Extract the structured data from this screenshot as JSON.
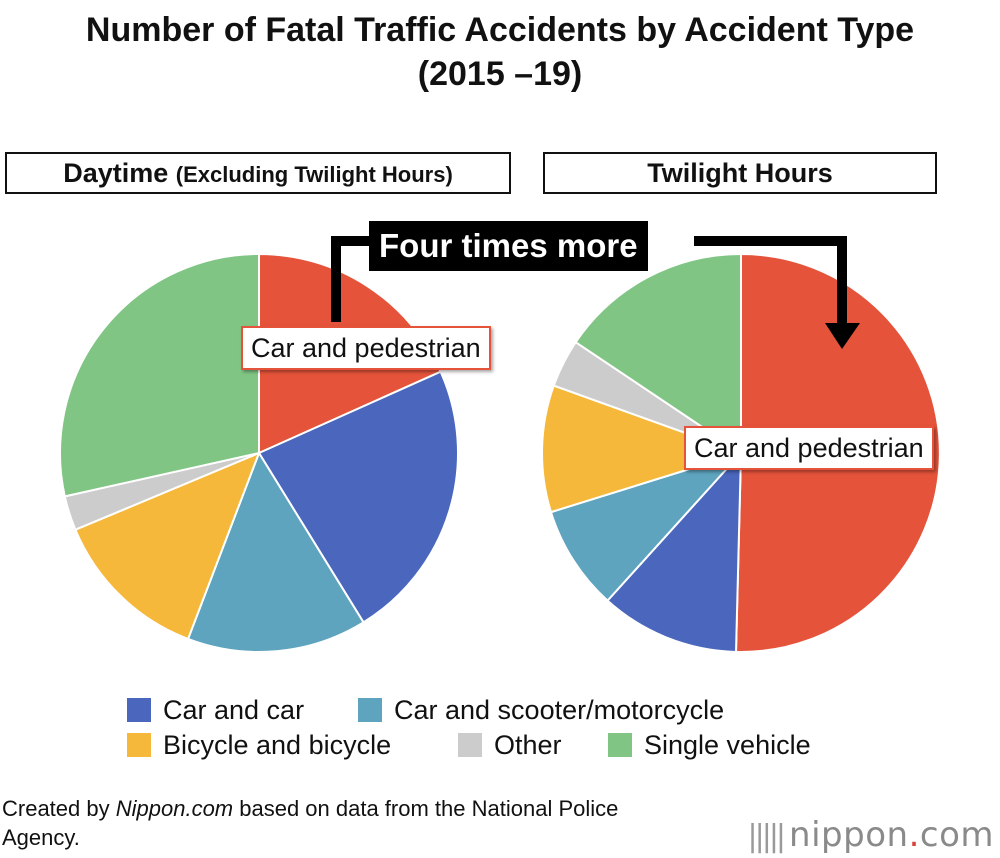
{
  "title_line1": "Number of Fatal Traffic Accidents by Accident Type",
  "title_line2": "(2015 –19)",
  "panels": {
    "daytime": {
      "main": "Daytime",
      "sub": "(Excluding Twilight Hours)"
    },
    "twilight": {
      "main": "Twilight Hours"
    }
  },
  "callout": "Four times more",
  "slice_label": "Car and pedestrian",
  "legend": [
    {
      "name": "Car and car",
      "color": "#4a67bd"
    },
    {
      "name": "Car and scooter/motorcycle",
      "color": "#5ea4be"
    },
    {
      "name": "Bicycle and bicycle",
      "color": "#f5b83a"
    },
    {
      "name": "Other",
      "color": "#cccccc"
    },
    {
      "name": "Single vehicle",
      "color": "#80c584"
    }
  ],
  "source_prefix": "Created by ",
  "source_italic": "Nippon.com",
  "source_suffix": " based on data from the National Police Agency.",
  "logo": {
    "main": "nippon",
    "dot": ".",
    "tld": "com"
  },
  "chart_data": [
    {
      "type": "pie",
      "title": "Daytime (Excluding Twilight Hours)",
      "categories": [
        "Car and pedestrian",
        "Car and car",
        "Car and scooter/motorcycle",
        "Bicycle and bicycle",
        "Other",
        "Single vehicle"
      ],
      "values": [
        18.3,
        22.9,
        14.6,
        12.9,
        2.8,
        28.5
      ],
      "colors": [
        "#e4533a",
        "#4a67bd",
        "#5ea4be",
        "#f5b83a",
        "#cccccc",
        "#80c584"
      ]
    },
    {
      "type": "pie",
      "title": "Twilight Hours",
      "categories": [
        "Car and pedestrian",
        "Car and car",
        "Car and scooter/motorcycle",
        "Bicycle and bicycle",
        "Other",
        "Single vehicle"
      ],
      "values": [
        50.4,
        11.3,
        8.5,
        10.3,
        3.9,
        15.6
      ],
      "colors": [
        "#e4533a",
        "#4a67bd",
        "#5ea4be",
        "#f5b83a",
        "#cccccc",
        "#80c584"
      ]
    }
  ]
}
